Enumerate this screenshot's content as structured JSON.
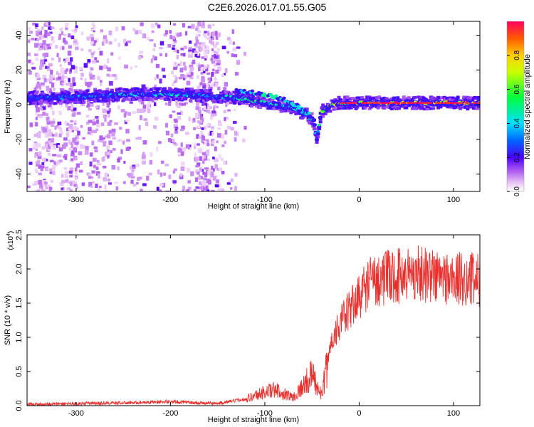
{
  "title": "C2E6.2026.017.01.55.G05",
  "chart_data": [
    {
      "type": "heatmap",
      "xlabel": "Height of straight line (km)",
      "ylabel": "Frequency (Hz)",
      "xlim": [
        -352,
        128
      ],
      "ylim": [
        -50,
        48
      ],
      "xticks": [
        -300,
        -200,
        -100,
        0,
        100
      ],
      "yticks": [
        -40,
        -20,
        0,
        20,
        40
      ],
      "colorbar": {
        "label": "Normalized spectral amplitude",
        "range": [
          0,
          1
        ],
        "ticks": [
          0.0,
          0.2,
          0.4,
          0.6,
          0.8
        ],
        "tick_labels": [
          "0.0",
          "0.2",
          "0.4",
          "0.6",
          "0.8"
        ]
      },
      "ridge": [
        {
          "x": -350,
          "y": 4,
          "a": 0.3
        },
        {
          "x": -320,
          "y": 4,
          "a": 0.35
        },
        {
          "x": -280,
          "y": 5,
          "a": 0.4
        },
        {
          "x": -240,
          "y": 6,
          "a": 0.45
        },
        {
          "x": -200,
          "y": 6,
          "a": 0.45
        },
        {
          "x": -160,
          "y": 5,
          "a": 0.42
        },
        {
          "x": -130,
          "y": 4,
          "a": 0.45
        },
        {
          "x": -110,
          "y": 2,
          "a": 0.55
        },
        {
          "x": -90,
          "y": 0,
          "a": 0.5
        },
        {
          "x": -70,
          "y": -2,
          "a": 0.45
        },
        {
          "x": -55,
          "y": -6,
          "a": 0.5
        },
        {
          "x": -48,
          "y": -10,
          "a": 0.6
        },
        {
          "x": -45,
          "y": -20,
          "a": 0.25
        },
        {
          "x": -40,
          "y": -4,
          "a": 0.8
        },
        {
          "x": -30,
          "y": 0,
          "a": 0.7
        },
        {
          "x": -20,
          "y": 1,
          "a": 0.85
        },
        {
          "x": 0,
          "y": 1,
          "a": 0.9
        },
        {
          "x": 40,
          "y": 1,
          "a": 0.9
        },
        {
          "x": 80,
          "y": 1,
          "a": 0.9
        },
        {
          "x": 128,
          "y": 1,
          "a": 0.9
        }
      ],
      "secondary_ridge": [
        {
          "x": -130,
          "y": 8,
          "a": 0.35
        },
        {
          "x": -100,
          "y": 6,
          "a": 0.5
        },
        {
          "x": -80,
          "y": 3,
          "a": 0.45
        },
        {
          "x": -60,
          "y": -2,
          "a": 0.4
        },
        {
          "x": -52,
          "y": -6,
          "a": 0.45
        }
      ],
      "noise_until_x": -140
    },
    {
      "type": "line",
      "xlabel": "Height of straight line (km)",
      "ylabel": "SNR (10 * v/v)",
      "y_scale_label": "(x10",
      "y_scale_exp": "4",
      "xlim": [
        -352,
        128
      ],
      "ylim": [
        0,
        25000
      ],
      "xticks": [
        -300,
        -200,
        -100,
        0,
        100
      ],
      "yticks": [
        0,
        5000,
        10000,
        15000,
        20000,
        25000
      ],
      "ytick_labels": [
        "0.0",
        "0.5",
        "1.0",
        "1.5",
        "2.0",
        "2.5"
      ],
      "color": "#e8312e",
      "series": [
        {
          "x": [
            -352,
            -300,
            -250,
            -200,
            -150,
            -120,
            -100,
            -90,
            -80,
            -70,
            -60,
            -50,
            -45,
            -40,
            -35,
            -30,
            -25,
            -20,
            -15,
            -10,
            -5,
            0,
            10,
            20,
            40,
            60,
            80,
            100,
            128
          ],
          "y": [
            200,
            300,
            400,
            600,
            300,
            1000,
            2000,
            2300,
            1800,
            1200,
            2800,
            4500,
            3000,
            1500,
            5000,
            9000,
            11000,
            12000,
            13000,
            14000,
            15000,
            16000,
            18000,
            18500,
            19000,
            19500,
            19000,
            18500,
            18500
          ]
        }
      ]
    }
  ]
}
